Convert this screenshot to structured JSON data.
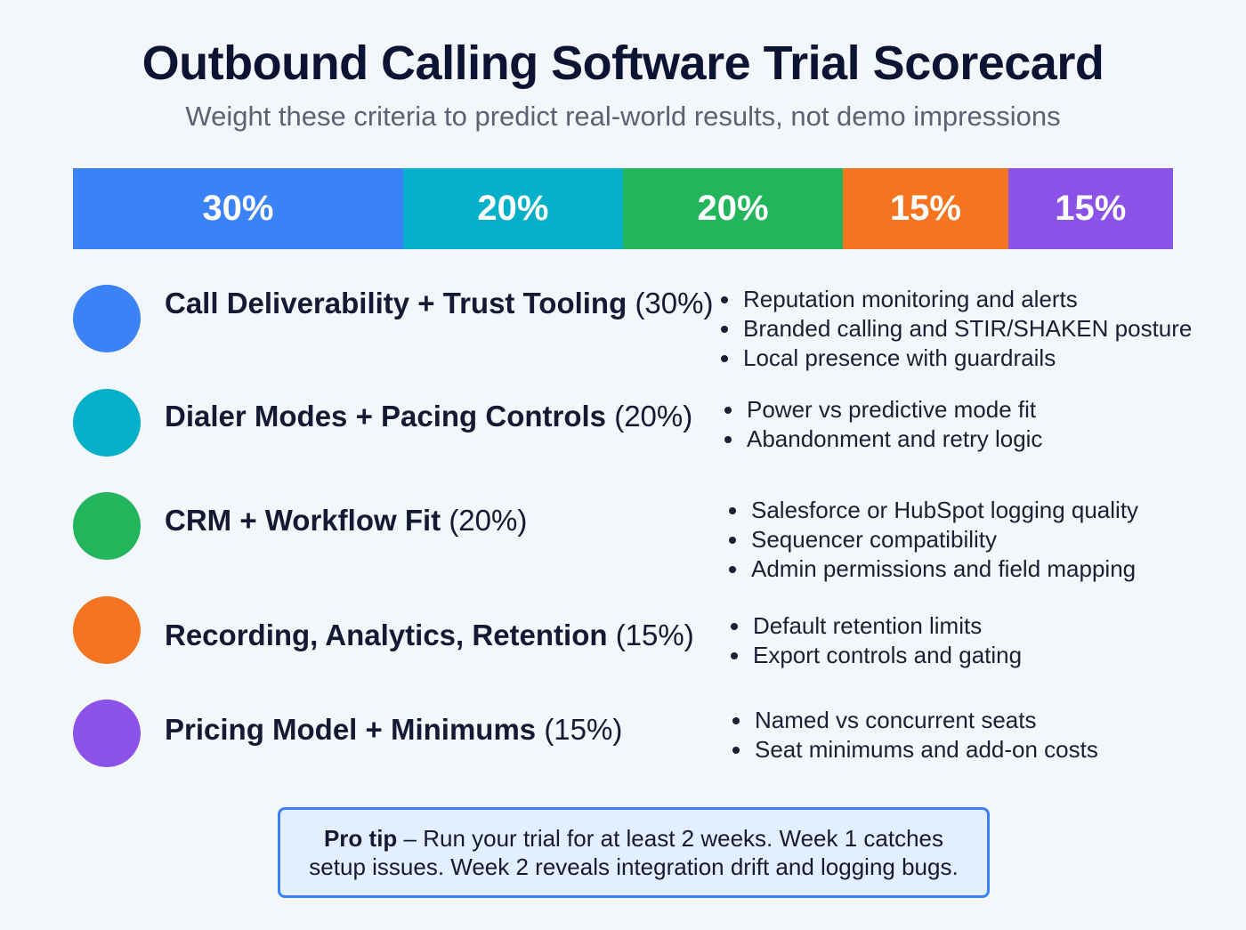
{
  "title": "Outbound Calling Software Trial Scorecard",
  "subtitle": "Weight these criteria to predict real-world results, not demo impressions",
  "weights_bar": [
    {
      "label": "30%",
      "weight": 30,
      "color": "#3b82f6"
    },
    {
      "label": "20%",
      "weight": 20,
      "color": "#06b0c8"
    },
    {
      "label": "20%",
      "weight": 20,
      "color": "#22b55c"
    },
    {
      "label": "15%",
      "weight": 15,
      "color": "#f47420"
    },
    {
      "label": "15%",
      "weight": 15,
      "color": "#8b52e8"
    }
  ],
  "criteria": [
    {
      "name": "Call Deliverability + Trust Tooling",
      "weight": "(30%)",
      "color": "#3b82f6",
      "bullets": [
        "Reputation monitoring and alerts",
        "Branded calling and STIR/SHAKEN posture",
        "Local presence with guardrails"
      ]
    },
    {
      "name": "Dialer Modes + Pacing Controls",
      "weight": "(20%)",
      "color": "#06b0c8",
      "bullets": [
        "Power vs predictive mode fit",
        "Abandonment and retry logic"
      ]
    },
    {
      "name": "CRM + Workflow Fit",
      "weight": "(20%)",
      "color": "#22b55c",
      "bullets": [
        "Salesforce or HubSpot logging quality",
        "Sequencer compatibility",
        "Admin permissions and field mapping"
      ]
    },
    {
      "name": "Recording, Analytics, Retention",
      "weight": "(15%)",
      "color": "#f47420",
      "bullets": [
        "Default retention limits",
        "Export controls and gating"
      ]
    },
    {
      "name": "Pricing Model + Minimums",
      "weight": "(15%)",
      "color": "#8b52e8",
      "bullets": [
        "Named vs concurrent seats",
        "Seat minimums and add-on costs"
      ]
    }
  ],
  "tip": {
    "lead": "Pro tip",
    "text": " – Run your trial for at least 2 weeks. Week 1 catches setup issues. Week 2 reveals integration drift and logging bugs."
  }
}
